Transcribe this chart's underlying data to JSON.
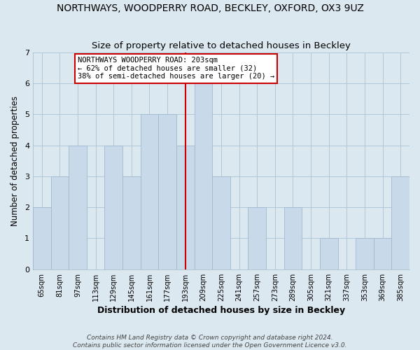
{
  "title": "NORTHWAYS, WOODPERRY ROAD, BECKLEY, OXFORD, OX3 9UZ",
  "subtitle": "Size of property relative to detached houses in Beckley",
  "xlabel": "Distribution of detached houses by size in Beckley",
  "ylabel": "Number of detached properties",
  "bar_labels": [
    "65sqm",
    "81sqm",
    "97sqm",
    "113sqm",
    "129sqm",
    "145sqm",
    "161sqm",
    "177sqm",
    "193sqm",
    "209sqm",
    "225sqm",
    "241sqm",
    "257sqm",
    "273sqm",
    "289sqm",
    "305sqm",
    "321sqm",
    "337sqm",
    "353sqm",
    "369sqm",
    "385sqm"
  ],
  "bar_values": [
    2,
    3,
    4,
    0,
    4,
    3,
    5,
    5,
    4,
    6,
    3,
    0,
    2,
    0,
    2,
    0,
    1,
    0,
    1,
    1,
    3
  ],
  "bar_color": "#c8daea",
  "bar_edge_color": "#a0b8d0",
  "highlight_index": 8,
  "highlight_line_color": "#cc0000",
  "annotation_title": "NORTHWAYS WOODPERRY ROAD: 203sqm",
  "annotation_line1": "← 62% of detached houses are smaller (32)",
  "annotation_line2": "38% of semi-detached houses are larger (20) →",
  "annotation_box_color": "#ffffff",
  "annotation_box_edgecolor": "#cc0000",
  "ylim": [
    0,
    7
  ],
  "footnote1": "Contains HM Land Registry data © Crown copyright and database right 2024.",
  "footnote2": "Contains public sector information licensed under the Open Government Licence v3.0.",
  "background_color": "#dce8f0",
  "title_fontsize": 10,
  "subtitle_fontsize": 9.5
}
